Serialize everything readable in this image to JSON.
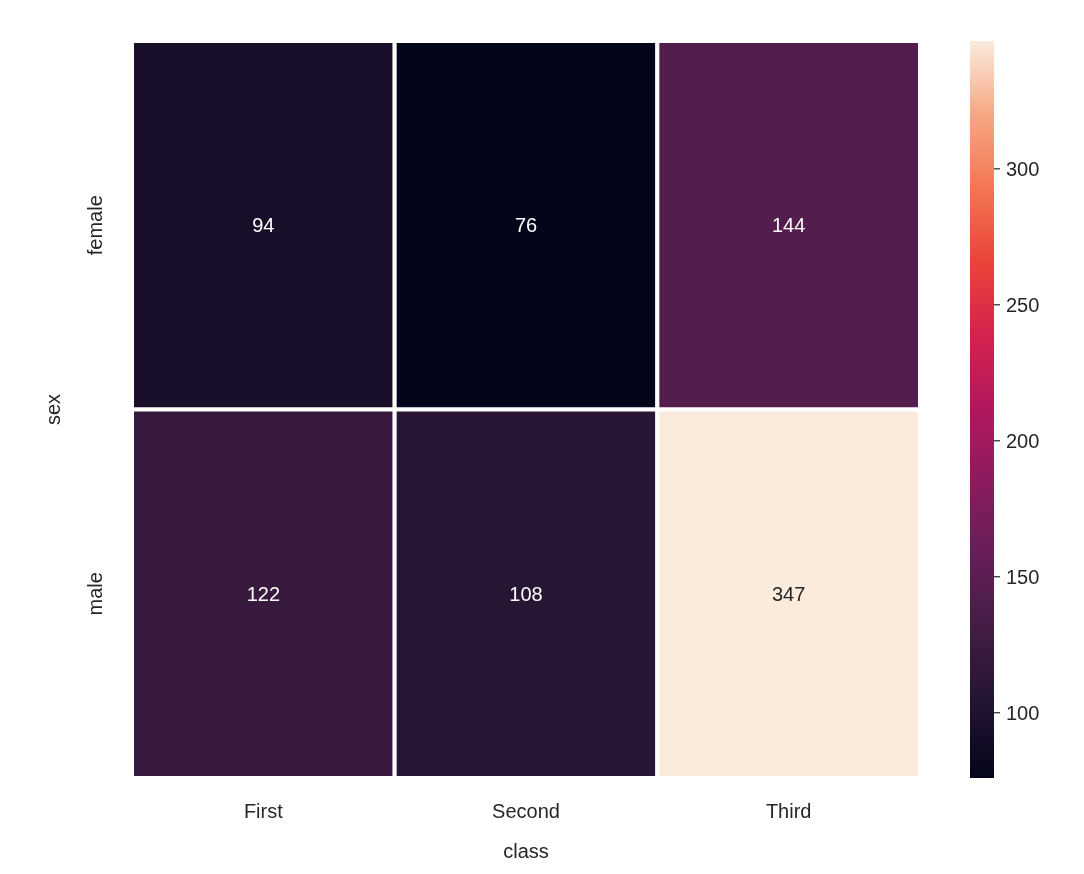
{
  "chart_data": {
    "type": "heatmap",
    "categories": [
      "First",
      "Second",
      "Third"
    ],
    "y_categories": [
      "female",
      "male"
    ],
    "cells": [
      [
        94,
        76,
        144
      ],
      [
        122,
        108,
        347
      ]
    ],
    "xlabel": "class",
    "ylabel": "sex",
    "clim": [
      76,
      347
    ],
    "cticks": [
      100,
      150,
      200,
      250,
      300
    ],
    "data_labels": true
  }
}
